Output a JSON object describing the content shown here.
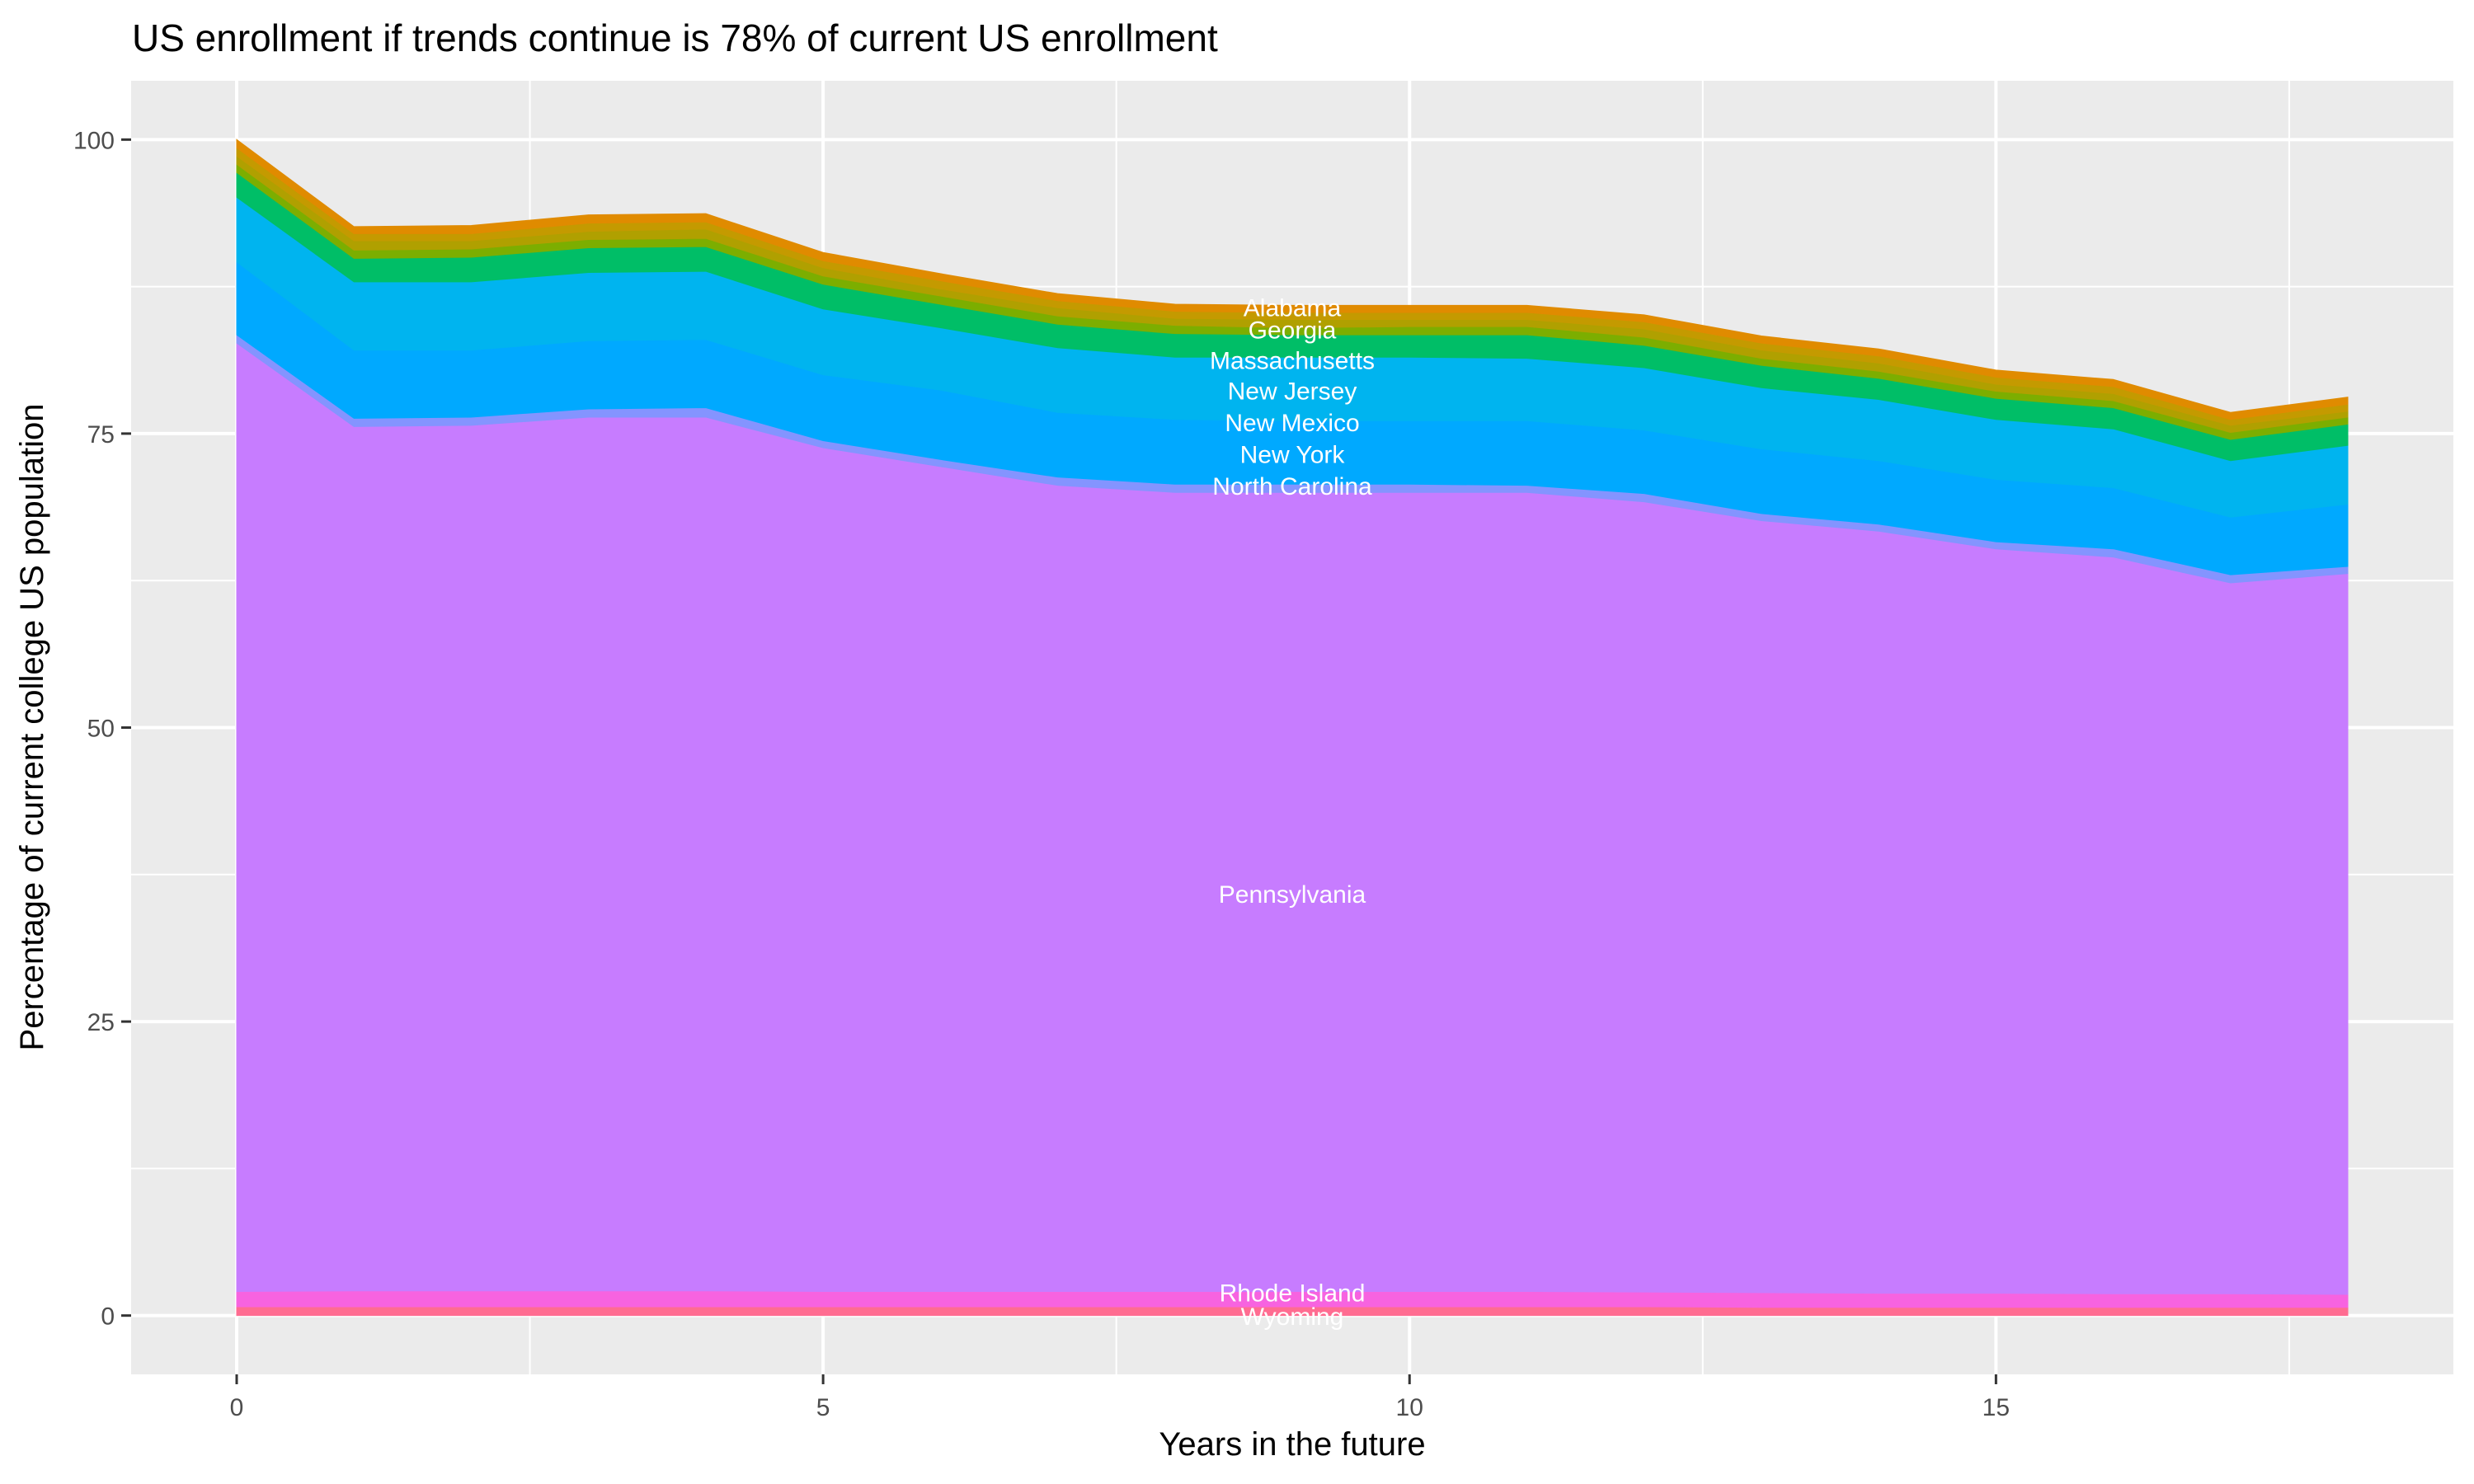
{
  "chart_data": {
    "type": "area",
    "stacked": true,
    "title": "US enrollment if trends continue is 78% of current US enrollment",
    "xlabel": "Years in the future",
    "ylabel": "Percentage of current college US population",
    "xlim": [
      -0.9,
      18.9
    ],
    "ylim": [
      -5,
      105
    ],
    "x_ticks": [
      0,
      5,
      10,
      15
    ],
    "x_tick_labels": [
      "0",
      "5",
      "10",
      "15"
    ],
    "y_ticks": [
      0,
      25,
      50,
      75,
      100
    ],
    "y_tick_labels": [
      "0",
      "25",
      "50",
      "75",
      "100"
    ],
    "grid": true,
    "panel_background": "#ebebeb",
    "x": [
      0,
      1,
      2,
      3,
      4,
      5,
      6,
      7,
      8,
      9,
      10,
      11,
      12,
      13,
      14,
      15,
      16,
      17,
      18
    ],
    "series_bottom_to_top": [
      {
        "color": "#ff6c91",
        "values": [
          0.75,
          0.75,
          0.75,
          0.75,
          0.75,
          0.75,
          0.75,
          0.75,
          0.75,
          0.75,
          0.75,
          0.75,
          0.75,
          0.7,
          0.7,
          0.7,
          0.7,
          0.7,
          0.7
        ]
      },
      {
        "color": "#f763e0",
        "values": [
          1.3,
          1.35,
          1.35,
          1.35,
          1.35,
          1.3,
          1.3,
          1.3,
          1.3,
          1.3,
          1.3,
          1.3,
          1.25,
          1.25,
          1.2,
          1.2,
          1.15,
          1.15,
          1.1
        ]
      },
      {
        "color": "#c77cff",
        "values": [
          80.65,
          73.5,
          73.6,
          74.3,
          74.3,
          71.75,
          70.15,
          68.55,
          67.95,
          67.95,
          67.95,
          67.95,
          67.2,
          65.65,
          64.8,
          63.3,
          62.65,
          60.45,
          61.3
        ]
      },
      {
        "color": "#8494ff",
        "values": [
          0.7,
          0.7,
          0.7,
          0.7,
          0.8,
          0.6,
          0.6,
          0.7,
          0.7,
          0.7,
          0.7,
          0.6,
          0.7,
          0.6,
          0.6,
          0.6,
          0.7,
          0.7,
          0.6
        ]
      },
      {
        "color": "#00a9ff",
        "values": [
          6.2,
          5.8,
          5.7,
          5.8,
          5.8,
          5.6,
          5.9,
          5.5,
          5.5,
          5.4,
          5.4,
          5.5,
          5.4,
          5.5,
          5.4,
          5.3,
          5.2,
          4.9,
          5.3
        ]
      },
      {
        "color": "#00b4ef",
        "values": [
          5.5,
          5.8,
          5.8,
          5.8,
          5.8,
          5.6,
          5.3,
          5.5,
          5.3,
          5.4,
          5.4,
          5.3,
          5.3,
          5.2,
          5.2,
          5.1,
          5.0,
          4.8,
          5.0
        ]
      },
      {
        "color": "#00be67",
        "values": [
          2.1,
          2.0,
          2.1,
          2.1,
          2.1,
          2.1,
          2.0,
          2.0,
          2.0,
          1.9,
          1.9,
          2.0,
          1.9,
          1.9,
          1.8,
          1.8,
          1.8,
          1.8,
          1.8
        ]
      },
      {
        "color": "#7cae00",
        "values": [
          0.7,
          0.7,
          0.7,
          0.7,
          0.7,
          0.7,
          0.7,
          0.7,
          0.7,
          0.6,
          0.7,
          0.7,
          0.7,
          0.6,
          0.6,
          0.6,
          0.6,
          0.6,
          0.6
        ]
      },
      {
        "color": "#b0a000",
        "values": [
          0.7,
          0.8,
          0.7,
          0.7,
          0.8,
          0.7,
          0.6,
          0.7,
          0.6,
          0.7,
          0.6,
          0.6,
          0.7,
          0.7,
          0.7,
          0.6,
          0.6,
          0.6,
          0.5
        ]
      },
      {
        "color": "#c49a00",
        "values": [
          0.7,
          0.6,
          0.6,
          0.7,
          0.6,
          0.6,
          0.7,
          0.6,
          0.6,
          0.6,
          0.6,
          0.6,
          0.6,
          0.6,
          0.6,
          0.6,
          0.6,
          0.5,
          0.6
        ]
      },
      {
        "color": "#e08b00",
        "values": [
          0.7,
          0.6,
          0.7,
          0.7,
          0.7,
          0.7,
          0.6,
          0.6,
          0.6,
          0.6,
          0.6,
          0.6,
          0.6,
          0.6,
          0.6,
          0.6,
          0.6,
          0.6,
          0.6
        ]
      }
    ],
    "annotations": [
      {
        "label": "Alabama",
        "x": 9,
        "y": 85.7
      },
      {
        "label": "Georgia",
        "x": 9,
        "y": 83.8
      },
      {
        "label": "Massachusetts",
        "x": 9,
        "y": 81.2
      },
      {
        "label": "New Jersey",
        "x": 9,
        "y": 78.6
      },
      {
        "label": "New Mexico",
        "x": 9,
        "y": 75.9
      },
      {
        "label": "New York",
        "x": 9,
        "y": 73.2
      },
      {
        "label": "North Carolina",
        "x": 9,
        "y": 70.5
      },
      {
        "label": "Pennsylvania",
        "x": 9,
        "y": 35.8
      },
      {
        "label": "Rhode Island",
        "x": 9,
        "y": 1.9
      },
      {
        "label": "Wyoming",
        "x": 9,
        "y": -0.1
      }
    ]
  }
}
